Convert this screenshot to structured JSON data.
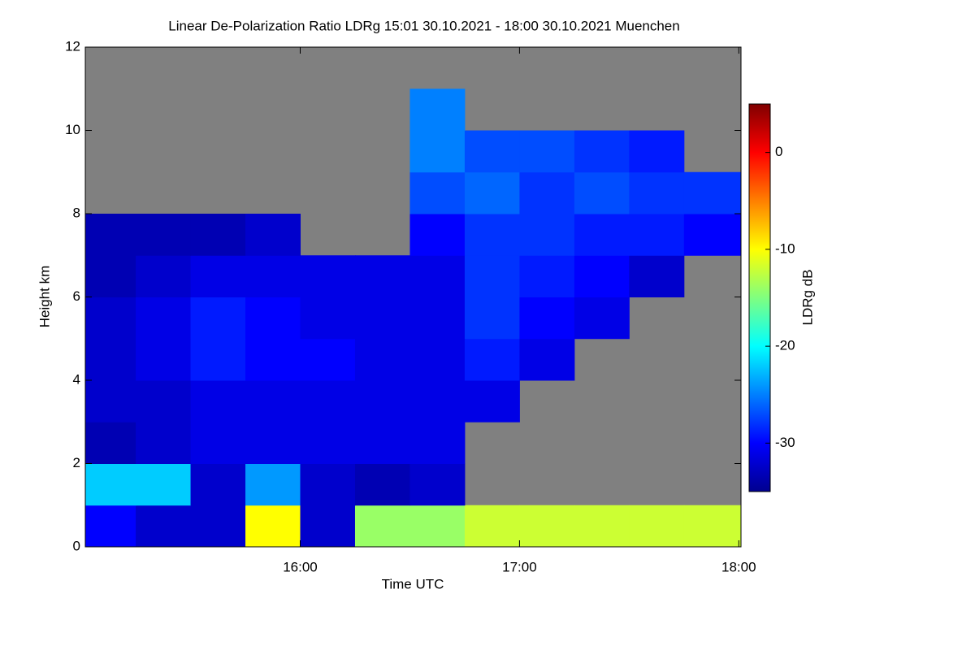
{
  "chart_data": {
    "type": "heatmap",
    "title": "Linear De-Polarization Ratio LDRg   15:01 30.10.2021 - 18:00 30.10.2021 Muenchen",
    "x_label": "Time UTC",
    "y_label": "Height km",
    "xlim": [
      15.02,
      18.01
    ],
    "xticks": [
      {
        "value": 16,
        "label": "16:00"
      },
      {
        "value": 17,
        "label": "17:00"
      },
      {
        "value": 18,
        "label": "18:00"
      }
    ],
    "ylim": [
      0,
      12
    ],
    "yticks": [
      0,
      2,
      4,
      6,
      8,
      10,
      12
    ],
    "x_bins": [
      15.02,
      15.25,
      15.5,
      15.75,
      16,
      16.25,
      16.5,
      16.75,
      17,
      17.25,
      17.5,
      17.75,
      18.01
    ],
    "y_bins": [
      0,
      1,
      2,
      3,
      4,
      5,
      6,
      7,
      8,
      9,
      10,
      11,
      12
    ],
    "z": [
      [
        -30,
        -32,
        -32,
        -10,
        -32,
        -14,
        -14,
        -12,
        -12,
        -12,
        -12,
        -12
      ],
      [
        -22,
        -22,
        -32,
        -24,
        -32,
        -33,
        -32,
        null,
        null,
        null,
        null,
        null
      ],
      [
        -33,
        -32,
        -31,
        -31,
        -31,
        -31,
        -31,
        null,
        null,
        null,
        null,
        null
      ],
      [
        -32,
        -32,
        -31,
        -31,
        -31,
        -31,
        -31,
        -31,
        null,
        null,
        null,
        null
      ],
      [
        -32,
        -31,
        -29,
        -30,
        -30,
        -31,
        -31,
        -29,
        -31,
        null,
        null,
        null
      ],
      [
        -32,
        -31,
        -29,
        -30,
        -31,
        -31,
        -31,
        -28,
        -30,
        -31,
        null,
        null
      ],
      [
        -33,
        -32,
        -31,
        -31,
        -31,
        -31,
        -31,
        -28,
        -29,
        -30,
        -32,
        null
      ],
      [
        -33,
        -33,
        -33,
        -32,
        null,
        null,
        -30,
        -28,
        -28,
        -29,
        -29,
        -30
      ],
      [
        null,
        null,
        null,
        null,
        null,
        null,
        -27,
        -26,
        -28,
        -27,
        -28,
        -28
      ],
      [
        null,
        null,
        null,
        null,
        null,
        null,
        -25,
        -27,
        -27,
        -28,
        -29,
        null
      ],
      [
        null,
        null,
        null,
        null,
        null,
        null,
        -25,
        null,
        null,
        null,
        null,
        null
      ],
      [
        null,
        null,
        null,
        null,
        null,
        null,
        null,
        null,
        null,
        null,
        null,
        null
      ]
    ],
    "colorbar": {
      "label": "LDRg dB",
      "lim": [
        -35,
        5
      ],
      "ticks": [
        0,
        -10,
        -20,
        -30
      ]
    },
    "missing_color": "#808080"
  }
}
